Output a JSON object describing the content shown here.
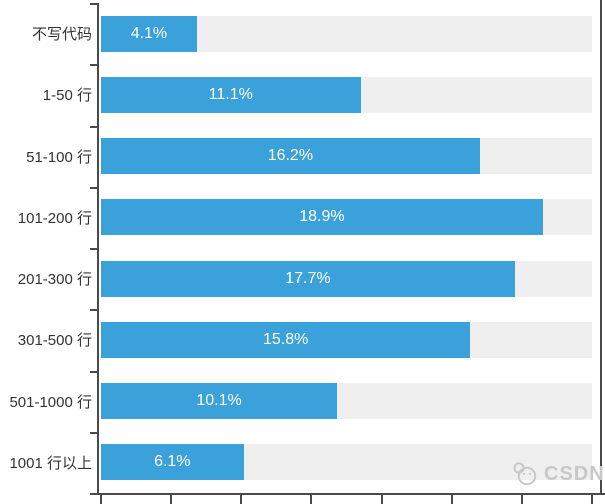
{
  "chart_data": {
    "type": "bar",
    "orientation": "horizontal",
    "title": "",
    "xlabel": "",
    "ylabel": "",
    "categories": [
      "不写代码",
      "1-50 行",
      "51-100 行",
      "101-200 行",
      "201-300 行",
      "301-500 行",
      "501-1000 行",
      "1001 行以上"
    ],
    "values": [
      4.1,
      11.1,
      16.2,
      18.9,
      17.7,
      15.8,
      10.1,
      6.1
    ],
    "value_labels": [
      "4.1%",
      "11.1%",
      "16.2%",
      "18.9%",
      "17.7%",
      "15.8%",
      "10.1%",
      "6.1%"
    ],
    "xlim": [
      0,
      21
    ],
    "x_tick_interval": 3,
    "x_tick_labels_visible": false,
    "grid": false,
    "legend": "none",
    "colors": {
      "bar": "#3aa1da",
      "track": "#efefef",
      "axis": "#4a4a4a",
      "category_label": "#333333",
      "value_label": "#ffffff"
    }
  },
  "watermark": {
    "icon": "csdn-logo",
    "text": "CSDN",
    "color": "#c8c8c8"
  }
}
